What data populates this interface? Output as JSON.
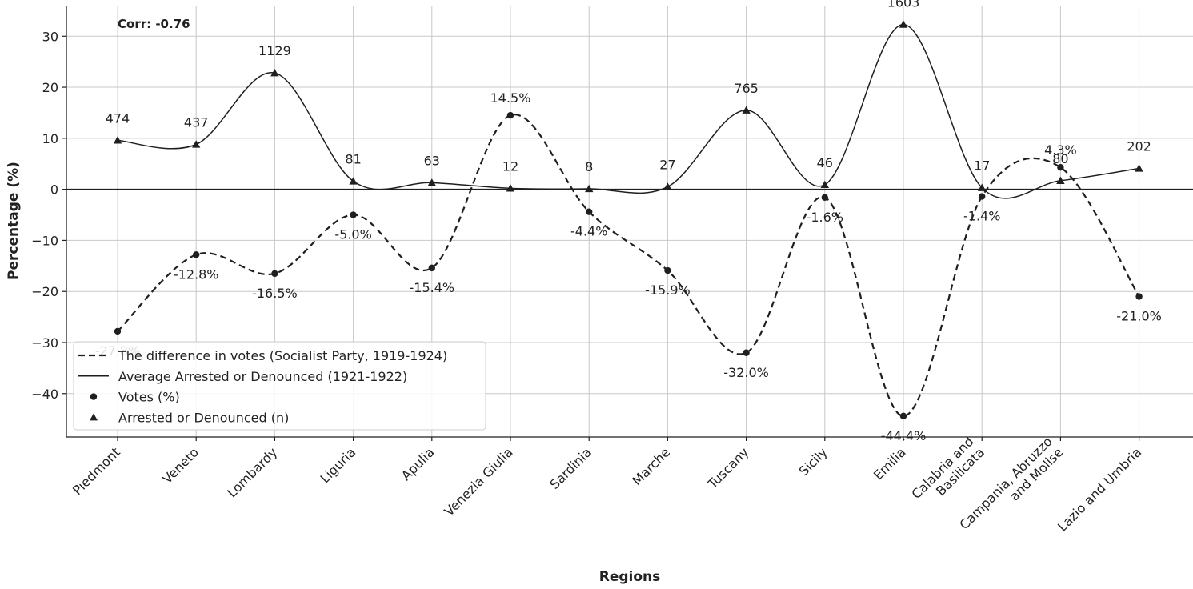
{
  "chart_data": {
    "type": "line",
    "title": "",
    "xlabel": "Regions",
    "ylabel": "Percentage (%)",
    "ylim": [
      -48.5,
      36
    ],
    "yticks": [
      30,
      20,
      10,
      0,
      -10,
      -20,
      -30,
      -40
    ],
    "ytick_labels": [
      "30",
      "20",
      "10",
      "0",
      "−10",
      "−20",
      "−30",
      "−40"
    ],
    "grid": true,
    "legend_position": "lower-left",
    "annotation": "Corr: -0.76",
    "categories": [
      "Piedmont",
      "Veneto",
      "Lombardy",
      "Liguria",
      "Apulia",
      "Venezia Giulia",
      "Sardinia",
      "Marche",
      "Tuscany",
      "Sicily",
      "Emilia",
      "Calabria and\nBasilicata",
      "Campania, Abruzzo\nand Molise",
      "Lazio and Umbria"
    ],
    "series": [
      {
        "name": "The difference in votes (Socialist Party, 1919-1924)",
        "line_style": "dashed",
        "values": [
          -27.8,
          -12.8,
          -16.5,
          -5.0,
          -15.4,
          14.5,
          -4.4,
          -15.9,
          -32.0,
          -1.6,
          -44.4,
          -1.4,
          4.3,
          -21.0
        ],
        "labels": [
          "-27.8%",
          "-12.8%",
          "-16.5%",
          "-5.0%",
          "-15.4%",
          "14.5%",
          "-4.4%",
          "-15.9%",
          "-32.0%",
          "-1.6%",
          "-44.4%",
          "-1.4%",
          "4.3%",
          "-21.0%"
        ]
      },
      {
        "name": "Average Arrested or Denounced (1921-1922)",
        "line_style": "solid",
        "values": [
          9.6,
          8.8,
          22.8,
          1.6,
          1.3,
          0.2,
          0.1,
          0.5,
          15.5,
          0.9,
          32.3,
          0.3,
          1.7,
          4.1
        ],
        "labels": [
          "474",
          "437",
          "1129",
          "81",
          "63",
          "12",
          "8",
          "27",
          "765",
          "46",
          "1603",
          "17",
          "80",
          "202"
        ]
      }
    ],
    "legend": [
      {
        "label": "The difference in votes (Socialist Party, 1919-1924)",
        "marker": "dashed-line"
      },
      {
        "label": "Average Arrested or Denounced (1921-1922)",
        "marker": "solid-line"
      },
      {
        "label": "Votes (%)",
        "marker": "circle"
      },
      {
        "label": "Arrested or Denounced (n)",
        "marker": "triangle"
      }
    ],
    "colors": {
      "line": "#1f1f1f",
      "grid": "#c8c8c8",
      "background": "#ffffff"
    }
  }
}
